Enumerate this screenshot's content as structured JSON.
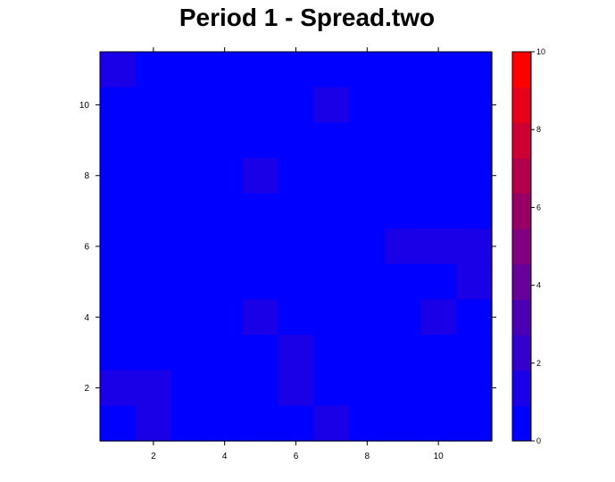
{
  "chart_data": {
    "type": "heatmap",
    "title": "Period 1 - Spread.two",
    "xlabel": "",
    "ylabel": "",
    "x_range": [
      0.5,
      11.5
    ],
    "y_range": [
      0.5,
      11.5
    ],
    "x_ticks": [
      2,
      4,
      6,
      8,
      10
    ],
    "y_ticks": [
      2,
      4,
      6,
      8,
      10
    ],
    "color_range": [
      0,
      10
    ],
    "colorbar_ticks": [
      0,
      2,
      4,
      6,
      8,
      10
    ],
    "colorbar_colors": [
      "#0000ff",
      "#1900e6",
      "#3300cc",
      "#4c00b3",
      "#660099",
      "#800080",
      "#990066",
      "#b3004c",
      "#cc0033",
      "#e60019",
      "#ff0000"
    ],
    "rows": [
      [
        1,
        0,
        0,
        0,
        0,
        0,
        0,
        0,
        0,
        0,
        0
      ],
      [
        0,
        0,
        0,
        0,
        0,
        0,
        1,
        0,
        0,
        0,
        0
      ],
      [
        0,
        0,
        0,
        0,
        0,
        0,
        0,
        0,
        0,
        0,
        0
      ],
      [
        0,
        0,
        0,
        0,
        1,
        0,
        0,
        0,
        0,
        0,
        0
      ],
      [
        0,
        0,
        0,
        0,
        0,
        0,
        0,
        0,
        0,
        0,
        0
      ],
      [
        0,
        0,
        0,
        0,
        0,
        0,
        0,
        0,
        1,
        1,
        1
      ],
      [
        0,
        0,
        0,
        0,
        0,
        0,
        0,
        0,
        0,
        0,
        1
      ],
      [
        0,
        0,
        0,
        0,
        1,
        0,
        0,
        0,
        0,
        1,
        0
      ],
      [
        0,
        0,
        0,
        0,
        0,
        1,
        0,
        0,
        0,
        0,
        0
      ],
      [
        1,
        1,
        0,
        0,
        0,
        1,
        0,
        0,
        0,
        0,
        0
      ],
      [
        0,
        1,
        0,
        0,
        0,
        0,
        1,
        0,
        0,
        0,
        0
      ]
    ]
  }
}
